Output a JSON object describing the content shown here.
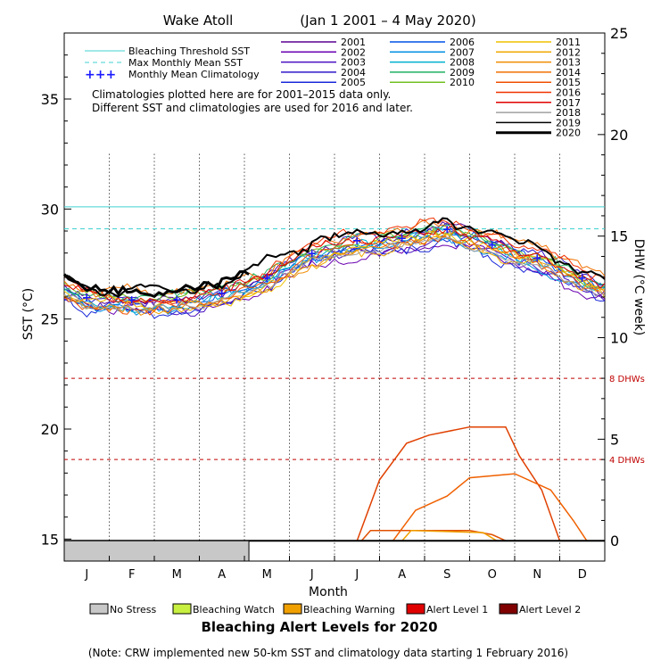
{
  "chart_data": {
    "type": "line",
    "title": {
      "site": "Wake Atoll",
      "period": "(Jan 1 2001 – 4 May 2020)"
    },
    "xlabel": "Month",
    "ylabel_left": "SST (°C)",
    "ylabel_right": "DHW (°C week)",
    "months": [
      "J",
      "F",
      "M",
      "A",
      "M",
      "J",
      "J",
      "A",
      "S",
      "O",
      "N",
      "D"
    ],
    "sst_ylim": [
      14,
      38
    ],
    "sst_ticks": [
      15,
      20,
      25,
      30,
      35
    ],
    "dhw_ylim": [
      -1,
      25
    ],
    "dhw_ticks": [
      0,
      5,
      10,
      15,
      20,
      25
    ],
    "bleaching_threshold_sst": 30.1,
    "max_monthly_mean_sst": 29.1,
    "dhw_thresholds": [
      {
        "value": 8,
        "label": "8 DHWs"
      },
      {
        "value": 4,
        "label": "4 DHWs"
      }
    ],
    "notes": [
      "Climatologies plotted here are for 2001–2015 data only.",
      "Different SST and climatologies are used for 2016 and later."
    ],
    "legend_lines": [
      {
        "label": "Bleaching Threshold SST",
        "color": "#40d0d0",
        "style": "solid"
      },
      {
        "label": "Max Monthly Mean SST",
        "color": "#40d0d0",
        "style": "dashed"
      },
      {
        "label": "Monthly Mean Climatology",
        "color": "#1a1aff",
        "style": "plus"
      }
    ],
    "years": [
      {
        "name": "2001",
        "color": "#5a0090"
      },
      {
        "name": "2002",
        "color": "#6a00b0"
      },
      {
        "name": "2003",
        "color": "#4a10c0"
      },
      {
        "name": "2004",
        "color": "#3018c8"
      },
      {
        "name": "2005",
        "color": "#1a28d8"
      },
      {
        "name": "2006",
        "color": "#0050e8"
      },
      {
        "name": "2007",
        "color": "#0090e0"
      },
      {
        "name": "2008",
        "color": "#00b0d0"
      },
      {
        "name": "2009",
        "color": "#20b060"
      },
      {
        "name": "2010",
        "color": "#70c020"
      },
      {
        "name": "2011",
        "color": "#f0c000"
      },
      {
        "name": "2012",
        "color": "#f0a800"
      },
      {
        "name": "2013",
        "color": "#f08c00"
      },
      {
        "name": "2014",
        "color": "#f07000"
      },
      {
        "name": "2015",
        "color": "#f05000"
      },
      {
        "name": "2016",
        "color": "#f03000"
      },
      {
        "name": "2017",
        "color": "#e00000"
      },
      {
        "name": "2018",
        "color": "#a0a0a0"
      },
      {
        "name": "2019",
        "color": "#000000"
      },
      {
        "name": "2020",
        "color": "#000000"
      }
    ],
    "climatology_monthly_mean": [
      26.0,
      25.9,
      25.9,
      26.2,
      26.9,
      28.0,
      28.6,
      28.7,
      29.1,
      28.4,
      27.8,
      26.9
    ],
    "dhw_series": [
      {
        "year": "2015",
        "color": "#e04000",
        "points": [
          [
            6.5,
            0
          ],
          [
            7.0,
            3.0
          ],
          [
            7.6,
            4.8
          ],
          [
            8.1,
            5.2
          ],
          [
            9.0,
            5.6
          ],
          [
            9.8,
            5.6
          ],
          [
            10.1,
            4.2
          ],
          [
            10.6,
            2.5
          ],
          [
            11.0,
            0
          ]
        ]
      },
      {
        "year": "2004",
        "color": "#f06000",
        "points": [
          [
            7.3,
            0
          ],
          [
            7.8,
            1.5
          ],
          [
            8.5,
            2.2
          ],
          [
            9.0,
            3.1
          ],
          [
            10.0,
            3.3
          ],
          [
            10.8,
            2.5
          ],
          [
            11.3,
            1.0
          ],
          [
            11.6,
            0
          ]
        ]
      },
      {
        "year": "2017",
        "color": "#e05000",
        "points": [
          [
            6.6,
            0
          ],
          [
            6.8,
            0.5
          ],
          [
            9.0,
            0.5
          ],
          [
            9.5,
            0.3
          ],
          [
            9.8,
            0
          ]
        ]
      },
      {
        "year": "2013",
        "color": "#f0a000",
        "points": [
          [
            7.5,
            0
          ],
          [
            7.7,
            0.5
          ],
          [
            9.3,
            0.4
          ],
          [
            9.6,
            0
          ]
        ]
      }
    ],
    "dhw_2020": [
      [
        0,
        0
      ],
      [
        4.15,
        0
      ]
    ],
    "alert_levels_title": "Bleaching Alert Levels for 2020",
    "alert_levels": [
      {
        "label": "No Stress",
        "color": "#c8c8c8"
      },
      {
        "label": "Bleaching Watch",
        "color": "#c8f040"
      },
      {
        "label": "Bleaching Warning",
        "color": "#f0a000"
      },
      {
        "label": "Alert Level 1",
        "color": "#e00000"
      },
      {
        "label": "Alert Level 2",
        "color": "#800000"
      }
    ],
    "alert_2020": [
      {
        "level": "No Stress",
        "from": 0,
        "to": 4.1
      }
    ],
    "footnote": "(Note: CRW implemented new 50-km SST and climatology data starting 1 February 2016)"
  }
}
